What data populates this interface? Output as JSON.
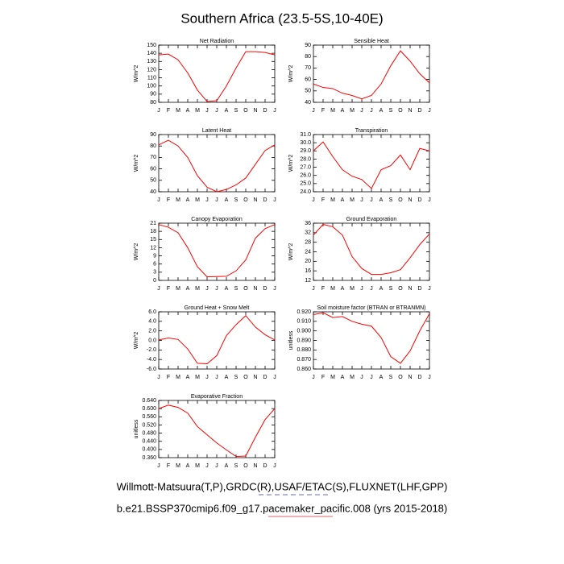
{
  "title": "Southern Africa (23.5-5S,10-40E)",
  "footer_lines": [
    "Willmott-Matsuura(T,P),GRDC(R),USAF/ETAC(S),FLUXNET(LHF,GPP)",
    "b.e21.BSSP370cmip6.f09_g17.pacemaker_pacific.008 (yrs 2015-2018)"
  ],
  "chart_data": [
    {
      "type": "line",
      "title": "Net Radiation",
      "ylabel": "W/m^2",
      "categories": [
        "J",
        "F",
        "M",
        "A",
        "M",
        "J",
        "J",
        "A",
        "S",
        "O",
        "N",
        "D",
        "J"
      ],
      "color": "#ff0000",
      "values": [
        138,
        139,
        132,
        116,
        95,
        81,
        82,
        100,
        122,
        142,
        142,
        141,
        138
      ],
      "ylim": [
        80,
        150
      ],
      "yticks": [
        80,
        90,
        100,
        110,
        120,
        130,
        140,
        150
      ]
    },
    {
      "type": "line",
      "title": "Sensible Heat",
      "ylabel": "W/m^2",
      "categories": [
        "J",
        "F",
        "M",
        "A",
        "M",
        "J",
        "J",
        "A",
        "S",
        "O",
        "N",
        "D",
        "J"
      ],
      "color": "#ff0000",
      "values": [
        56,
        53,
        52,
        48,
        46,
        43,
        46,
        56,
        72,
        85,
        76,
        65,
        57
      ],
      "ylim": [
        40,
        90
      ],
      "yticks": [
        40,
        50,
        60,
        70,
        80,
        90
      ]
    },
    {
      "type": "line",
      "title": "Latent Heat",
      "ylabel": "W/m^2",
      "categories": [
        "J",
        "F",
        "M",
        "A",
        "M",
        "J",
        "J",
        "A",
        "S",
        "O",
        "N",
        "D",
        "J"
      ],
      "color": "#ff0000",
      "values": [
        81,
        85,
        80,
        70,
        54,
        44,
        40,
        42,
        46,
        52,
        64,
        76,
        81
      ],
      "ylim": [
        40,
        90
      ],
      "yticks": [
        40,
        50,
        60,
        70,
        80,
        90
      ]
    },
    {
      "type": "line",
      "title": "Transpiration",
      "ylabel": "W/m^2",
      "categories": [
        "J",
        "F",
        "M",
        "A",
        "M",
        "J",
        "J",
        "A",
        "S",
        "O",
        "N",
        "D",
        "J"
      ],
      "color": "#ff0000",
      "values": [
        29.0,
        30.1,
        28.3,
        26.7,
        25.9,
        25.5,
        24.4,
        26.7,
        27.2,
        28.5,
        26.7,
        29.3,
        29.0
      ],
      "ylim": [
        24,
        31
      ],
      "yticks": [
        {
          "value": 24,
          "label": "24.0"
        },
        {
          "value": 25,
          "label": "25.0"
        },
        {
          "value": 26,
          "label": "26.0"
        },
        {
          "value": 27,
          "label": "27.0"
        },
        {
          "value": 28,
          "label": "28.0"
        },
        {
          "value": 29,
          "label": "29.0"
        },
        {
          "value": 30,
          "label": "30.0"
        },
        {
          "value": 31,
          "label": "31.0"
        }
      ]
    },
    {
      "type": "line",
      "title": "Canopy Evaporation",
      "ylabel": "W/m^2",
      "categories": [
        "J",
        "F",
        "M",
        "A",
        "M",
        "J",
        "J",
        "A",
        "S",
        "O",
        "N",
        "D",
        "J"
      ],
      "color": "#ff0000",
      "values": [
        20.5,
        19.5,
        17.5,
        12,
        5,
        1.3,
        1.4,
        1.5,
        3.5,
        7.5,
        15.5,
        19,
        20.5
      ],
      "ylim": [
        0,
        21
      ],
      "yticks": [
        0,
        3,
        6,
        9,
        12,
        15,
        18,
        21
      ]
    },
    {
      "type": "line",
      "title": "Ground Evaporation",
      "ylabel": "W/m^2",
      "categories": [
        "J",
        "F",
        "M",
        "A",
        "M",
        "J",
        "J",
        "A",
        "S",
        "O",
        "N",
        "D",
        "J"
      ],
      "color": "#ff0000",
      "values": [
        31,
        35.5,
        34.5,
        31,
        22,
        17,
        14.5,
        14.5,
        15.2,
        16.5,
        21.5,
        27,
        31.5
      ],
      "ylim": [
        12,
        36
      ],
      "yticks": [
        12,
        16,
        20,
        24,
        28,
        32,
        36
      ]
    },
    {
      "type": "line",
      "title": "Ground Heat + Snow Melt",
      "ylabel": "W/m^2",
      "categories": [
        "J",
        "F",
        "M",
        "A",
        "M",
        "J",
        "J",
        "A",
        "S",
        "O",
        "N",
        "D",
        "J"
      ],
      "color": "#ff0000",
      "values": [
        0.1,
        0.5,
        0.2,
        -1.8,
        -4.8,
        -4.9,
        -3.2,
        1.0,
        3.3,
        5.2,
        2.8,
        1.2,
        0.1
      ],
      "ylim": [
        -6,
        6
      ],
      "yticks": [
        {
          "value": -6,
          "label": "-6.0"
        },
        {
          "value": -4,
          "label": "-4.0"
        },
        {
          "value": -2,
          "label": "-2.0"
        },
        {
          "value": 0,
          "label": "0.0"
        },
        {
          "value": 2,
          "label": "2.0"
        },
        {
          "value": 4,
          "label": "4.0"
        },
        {
          "value": 6,
          "label": "6.0"
        }
      ]
    },
    {
      "type": "line",
      "title": "Soil moisture factor (BTRAN or BTRANMN)",
      "ylabel": "unitless",
      "categories": [
        "J",
        "F",
        "M",
        "A",
        "M",
        "J",
        "J",
        "A",
        "S",
        "O",
        "N",
        "D",
        "J"
      ],
      "color": "#ff0000",
      "values": [
        0.917,
        0.919,
        0.914,
        0.915,
        0.91,
        0.907,
        0.905,
        0.893,
        0.873,
        0.866,
        0.879,
        0.9,
        0.918
      ],
      "ylim": [
        0.86,
        0.92
      ],
      "yticks": [
        {
          "value": 0.86,
          "label": "0.860"
        },
        {
          "value": 0.87,
          "label": "0.870"
        },
        {
          "value": 0.88,
          "label": "0.880"
        },
        {
          "value": 0.89,
          "label": "0.890"
        },
        {
          "value": 0.9,
          "label": "0.900"
        },
        {
          "value": 0.91,
          "label": "0.910"
        },
        {
          "value": 0.92,
          "label": "0.920"
        }
      ]
    },
    {
      "type": "line",
      "title": "Evaporative Fraction",
      "ylabel": "unitless",
      "categories": [
        "J",
        "F",
        "M",
        "A",
        "M",
        "J",
        "J",
        "A",
        "S",
        "O",
        "N",
        "D",
        "J"
      ],
      "color": "#ff0000",
      "values": [
        0.6,
        0.617,
        0.606,
        0.578,
        0.512,
        0.472,
        0.432,
        0.398,
        0.366,
        0.368,
        0.46,
        0.546,
        0.6
      ],
      "ylim": [
        0.36,
        0.64
      ],
      "yticks": [
        {
          "value": 0.36,
          "label": "0.360"
        },
        {
          "value": 0.4,
          "label": "0.400"
        },
        {
          "value": 0.44,
          "label": "0.440"
        },
        {
          "value": 0.48,
          "label": "0.480"
        },
        {
          "value": 0.52,
          "label": "0.520"
        },
        {
          "value": 0.56,
          "label": "0.560"
        },
        {
          "value": 0.6,
          "label": "0.600"
        },
        {
          "value": 0.64,
          "label": "0.640"
        }
      ]
    }
  ]
}
